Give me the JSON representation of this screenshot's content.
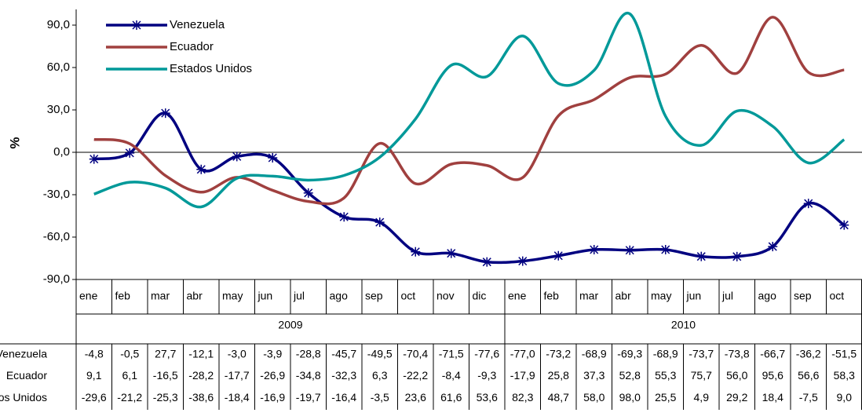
{
  "chart_data": {
    "type": "line",
    "ylabel": "%",
    "categories": [
      "ene",
      "feb",
      "mar",
      "abr",
      "may",
      "jun",
      "jul",
      "ago",
      "sep",
      "oct",
      "nov",
      "dic",
      "ene",
      "feb",
      "mar",
      "abr",
      "may",
      "jun",
      "jul",
      "ago",
      "sep",
      "oct"
    ],
    "years": [
      "2009",
      "2010"
    ],
    "ylim": [
      -90,
      90
    ],
    "yticks": [
      {
        "value": 90,
        "label": "90,0"
      },
      {
        "value": 60,
        "label": "60,0"
      },
      {
        "value": 30,
        "label": "30,0"
      },
      {
        "value": 0,
        "label": "0,0"
      },
      {
        "value": -30,
        "label": "-30,0"
      },
      {
        "value": -60,
        "label": "-60,0"
      },
      {
        "value": -90,
        "label": "-90,0"
      }
    ],
    "legend": "upper left",
    "series": [
      {
        "name": "Venezuela",
        "color": "#000080",
        "marker": "asterisk",
        "values": [
          -4.8,
          -0.5,
          27.7,
          -12.1,
          -3.0,
          -3.9,
          -28.8,
          -45.7,
          -49.5,
          -70.4,
          -71.5,
          -77.6,
          -77.0,
          -73.2,
          -68.9,
          -69.3,
          -68.9,
          -73.7,
          -73.8,
          -66.7,
          -36.2,
          -51.5
        ],
        "value_labels": [
          "-4,8",
          "-0,5",
          "27,7",
          "-12,1",
          "-3,0",
          "-3,9",
          "-28,8",
          "-45,7",
          "-49,5",
          "-70,4",
          "-71,5",
          "-77,6",
          "-77,0",
          "-73,2",
          "-68,9",
          "-69,3",
          "-68,9",
          "-73,7",
          "-73,8",
          "-66,7",
          "-36,2",
          "-51,5"
        ]
      },
      {
        "name": "Ecuador",
        "color": "#a0403f",
        "values": [
          9.1,
          6.1,
          -16.5,
          -28.2,
          -17.7,
          -26.9,
          -34.8,
          -32.3,
          6.3,
          -22.2,
          -8.4,
          -9.3,
          -17.9,
          25.8,
          37.3,
          52.8,
          55.3,
          75.7,
          56.0,
          95.6,
          56.6,
          58.3
        ],
        "value_labels": [
          "9,1",
          "6,1",
          "-16,5",
          "-28,2",
          "-17,7",
          "-26,9",
          "-34,8",
          "-32,3",
          "6,3",
          "-22,2",
          "-8,4",
          "-9,3",
          "-17,9",
          "25,8",
          "37,3",
          "52,8",
          "55,3",
          "75,7",
          "56,0",
          "95,6",
          "56,6",
          "58,3"
        ]
      },
      {
        "name": "Estados Unidos",
        "color": "#009999",
        "values": [
          -29.6,
          -21.2,
          -25.3,
          -38.6,
          -18.4,
          -16.9,
          -19.7,
          -16.4,
          -3.5,
          23.6,
          61.6,
          53.6,
          82.3,
          48.7,
          58.0,
          98.0,
          25.5,
          4.9,
          29.2,
          18.4,
          -7.5,
          9.0
        ],
        "value_labels": [
          "-29,6",
          "-21,2",
          "-25,3",
          "-38,6",
          "-18,4",
          "-16,9",
          "-19,7",
          "-16,4",
          "-3,5",
          "23,6",
          "61,6",
          "53,6",
          "82,3",
          "48,7",
          "58,0",
          "98,0",
          "25,5",
          "4,9",
          "29,2",
          "18,4",
          "-7,5",
          "9,0"
        ]
      }
    ]
  }
}
